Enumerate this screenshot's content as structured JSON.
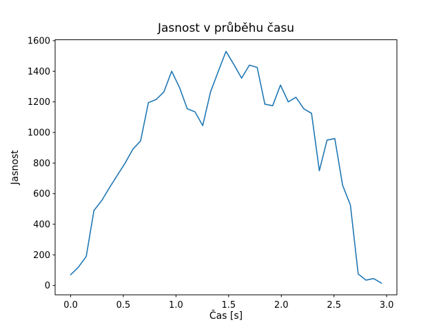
{
  "window": {
    "background_color": "#ffffff"
  },
  "chart_data": {
    "type": "line",
    "title": "Jasnost v průběhu času",
    "xlabel": "Čas [s]",
    "ylabel": "Jasnost",
    "legend": null,
    "grid": false,
    "line_color": "#1f77b4",
    "axis_color": "#000000",
    "xlim": [
      -0.1475,
      3.0975
    ],
    "ylim": [
      -61,
      1606
    ],
    "x_ticks": [
      {
        "value": 0.0,
        "label": "0.0"
      },
      {
        "value": 0.5,
        "label": "0.5"
      },
      {
        "value": 1.0,
        "label": "1.0"
      },
      {
        "value": 1.5,
        "label": "1.5"
      },
      {
        "value": 2.0,
        "label": "2.0"
      },
      {
        "value": 2.5,
        "label": "2.5"
      },
      {
        "value": 3.0,
        "label": "3.0"
      }
    ],
    "y_ticks": [
      {
        "value": 0,
        "label": "0"
      },
      {
        "value": 200,
        "label": "200"
      },
      {
        "value": 400,
        "label": "400"
      },
      {
        "value": 600,
        "label": "600"
      },
      {
        "value": 800,
        "label": "800"
      },
      {
        "value": 1000,
        "label": "1000"
      },
      {
        "value": 1200,
        "label": "1200"
      },
      {
        "value": 1400,
        "label": "1400"
      },
      {
        "value": 1600,
        "label": "1600"
      }
    ],
    "x": [
      0.0,
      0.074,
      0.148,
      0.221,
      0.295,
      0.369,
      0.443,
      0.517,
      0.59,
      0.664,
      0.738,
      0.811,
      0.885,
      0.959,
      1.033,
      1.107,
      1.18,
      1.254,
      1.328,
      1.402,
      1.475,
      1.549,
      1.623,
      1.697,
      1.771,
      1.844,
      1.918,
      1.992,
      2.066,
      2.139,
      2.213,
      2.287,
      2.361,
      2.434,
      2.508,
      2.582,
      2.656,
      2.73,
      2.803,
      2.877,
      2.951
    ],
    "y": [
      70,
      120,
      190,
      490,
      555,
      640,
      720,
      800,
      890,
      945,
      1195,
      1215,
      1265,
      1400,
      1295,
      1155,
      1135,
      1045,
      1265,
      1400,
      1530,
      1445,
      1355,
      1440,
      1425,
      1185,
      1175,
      1310,
      1200,
      1230,
      1155,
      1125,
      750,
      950,
      960,
      655,
      525,
      75,
      35,
      45,
      15
    ]
  }
}
